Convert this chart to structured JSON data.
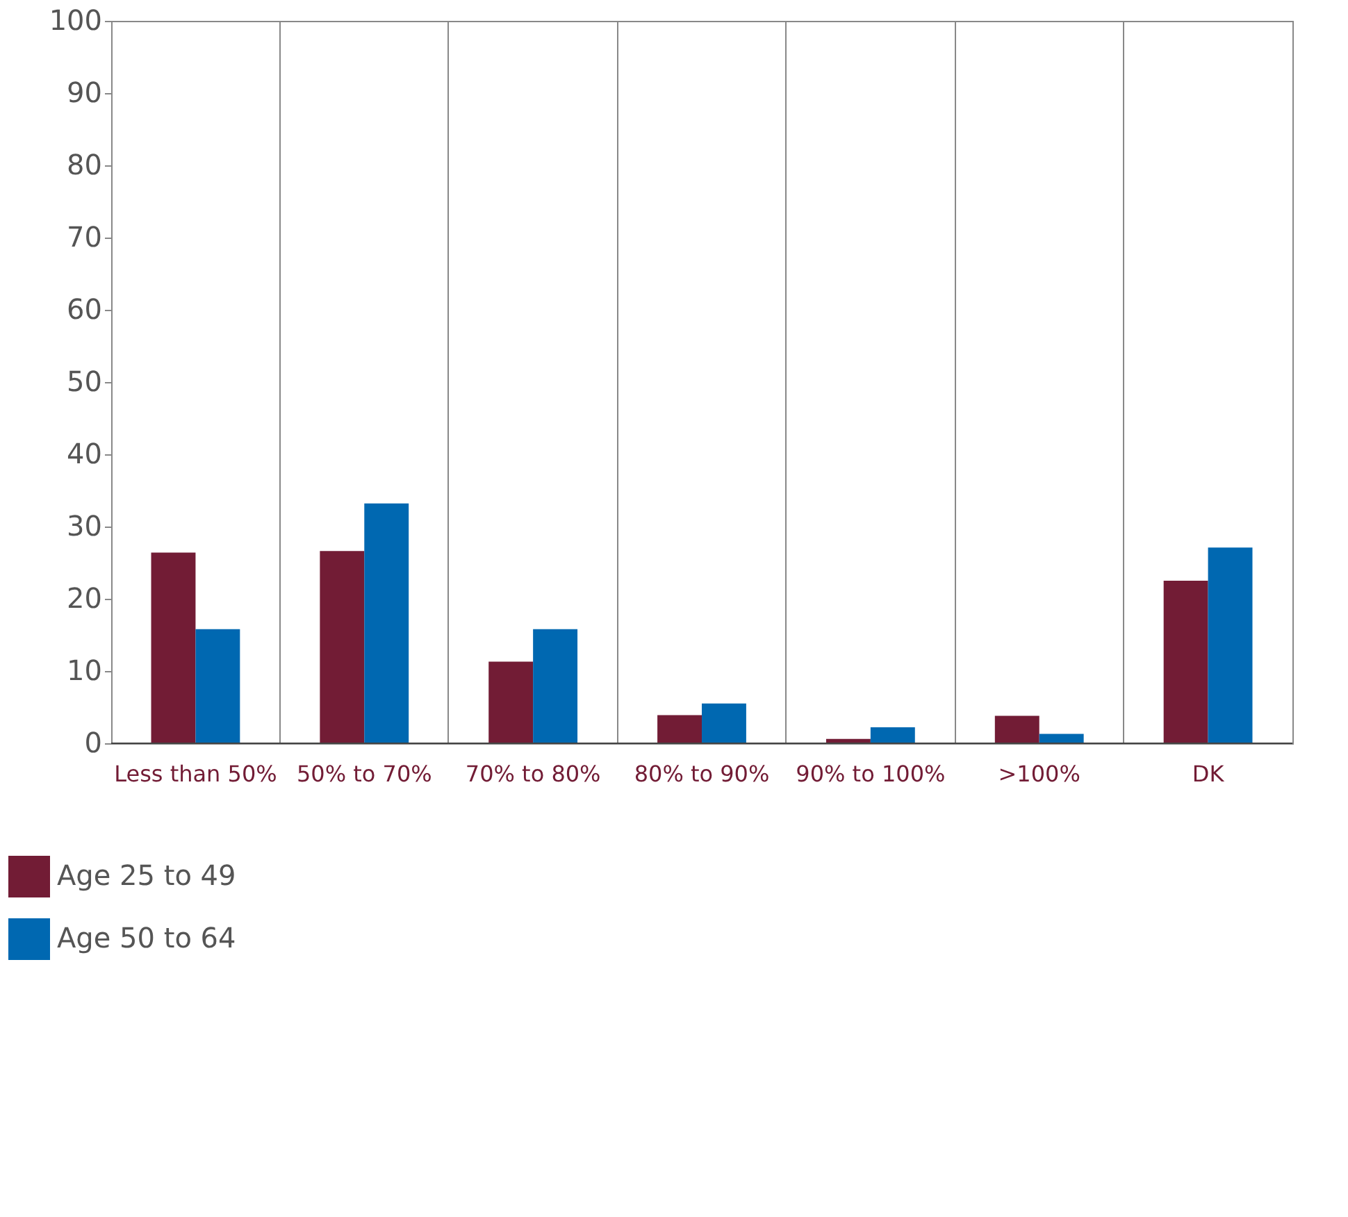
{
  "chart_data": {
    "type": "bar",
    "categories": [
      "Less than 50%",
      "50% to 70%",
      "70% to 80%",
      "80% to 90%",
      "90% to 100%",
      ">100%",
      "DK"
    ],
    "series": [
      {
        "name": "Age 25 to 49",
        "color": "#721c35",
        "values": [
          26.4,
          26.6,
          11.3,
          3.9,
          0.6,
          3.8,
          22.5
        ]
      },
      {
        "name": "Age 50 to 64",
        "color": "#0068b1",
        "values": [
          15.8,
          33.2,
          15.8,
          5.5,
          2.2,
          1.3,
          27.1
        ]
      }
    ],
    "ylim": [
      0,
      100
    ],
    "yticks": [
      0,
      10,
      20,
      30,
      40,
      50,
      60,
      70,
      80,
      90,
      100
    ],
    "grid": false,
    "legend": "bottom left"
  }
}
